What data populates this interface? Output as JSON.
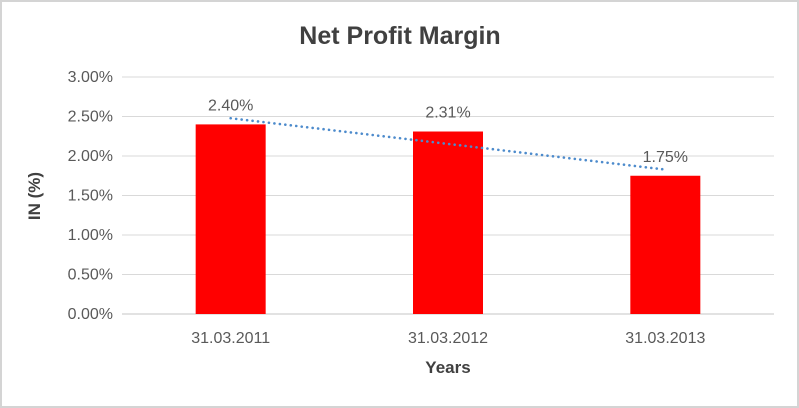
{
  "chart_data": {
    "type": "bar",
    "title": "Net Profit Margin",
    "xlabel": "Years",
    "ylabel": "IN (%)",
    "categories": [
      "31.03.2011",
      "31.03.2012",
      "31.03.2013"
    ],
    "values": [
      2.4,
      2.31,
      1.75
    ],
    "data_labels": [
      "2.40%",
      "2.31%",
      "1.75%"
    ],
    "ylim": [
      0,
      3.0
    ],
    "ytick_step": 0.5,
    "ytick_labels": [
      "0.00%",
      "0.50%",
      "1.00%",
      "1.50%",
      "2.00%",
      "2.50%",
      "3.00%"
    ],
    "grid": true,
    "legend": "none",
    "trendline": {
      "type": "linear",
      "style": "dotted",
      "start_value": 2.478,
      "end_value": 1.828
    },
    "colors": {
      "bar": "#FF0000",
      "trendline": "#4D8BCC",
      "gridline": "#D9D9D9",
      "axis_line": "#C6C6C6",
      "title_text": "#404040",
      "tick_text": "#595959",
      "border": "#D4D4D4"
    }
  }
}
